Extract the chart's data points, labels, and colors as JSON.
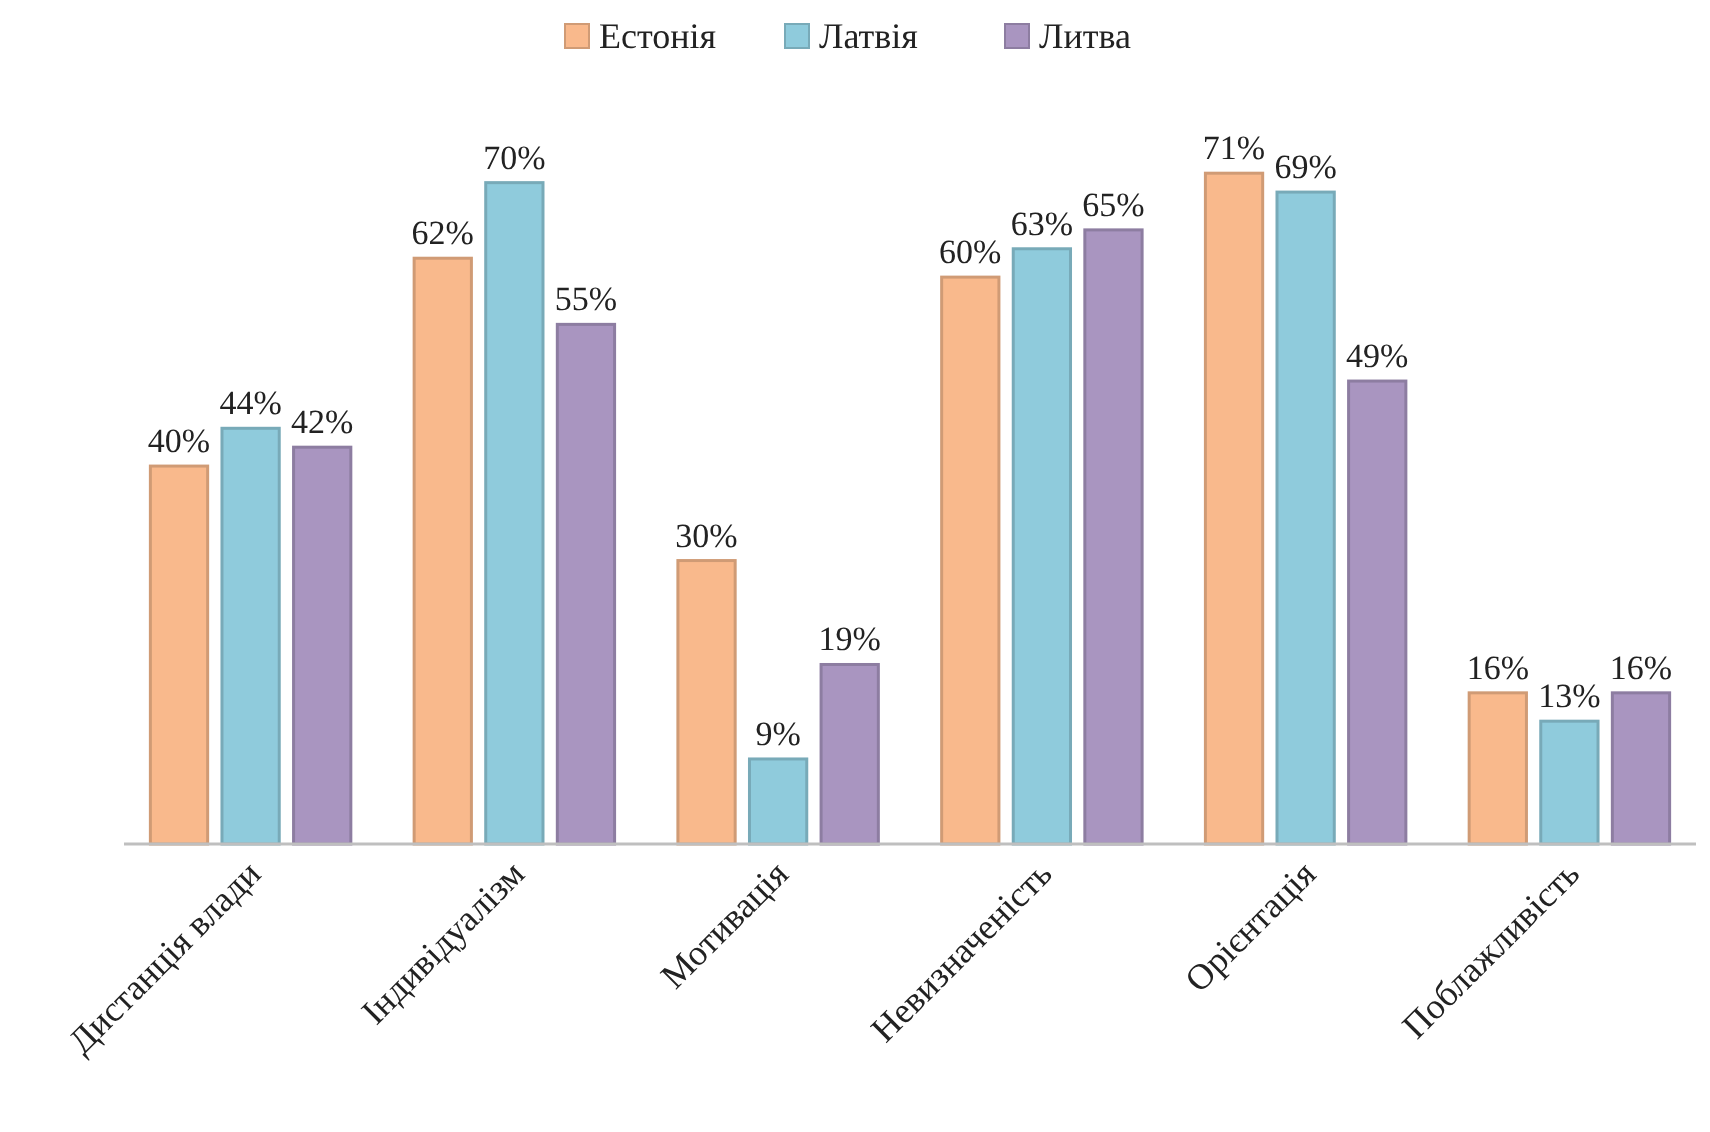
{
  "chart_data": {
    "type": "bar",
    "categories": [
      "Дистанція влади",
      "Індивідуалізм",
      "Мотивація",
      "Невизначеність",
      "Орієнтація",
      "Поблажливість"
    ],
    "series": [
      {
        "name": "Естонія",
        "color": "#f9b98c",
        "values": [
          40,
          62,
          30,
          60,
          71,
          16
        ],
        "value_labels": [
          "40%",
          "62%",
          "30%",
          "60%",
          "71%",
          "16%"
        ]
      },
      {
        "name": "Латвія",
        "color": "#8fcbdc",
        "values": [
          44,
          70,
          9,
          63,
          69,
          13
        ],
        "value_labels": [
          "44%",
          "70%",
          "9%",
          "63%",
          "69%",
          "13%"
        ]
      },
      {
        "name": "Литва",
        "color": "#a995c0",
        "values": [
          42,
          55,
          19,
          65,
          49,
          16
        ],
        "value_labels": [
          "42%",
          "55%",
          "19%",
          "65%",
          "49%",
          "16%"
        ]
      }
    ],
    "grid": false,
    "legend": "top"
  }
}
